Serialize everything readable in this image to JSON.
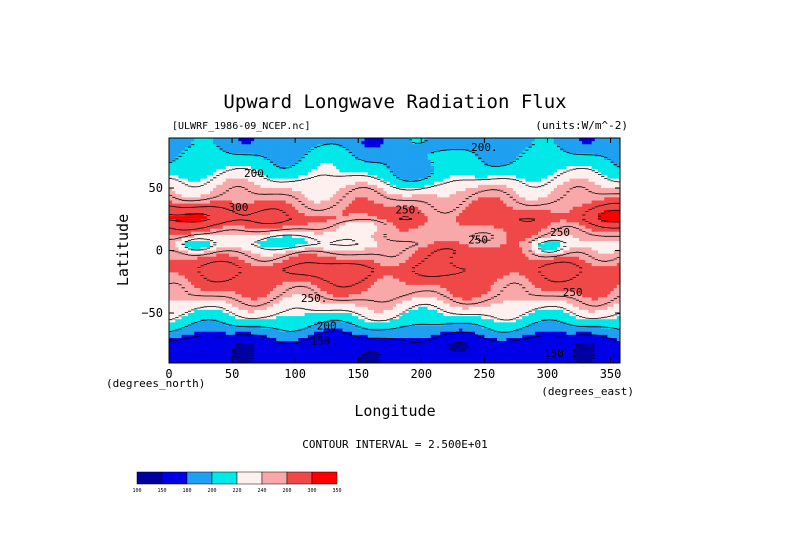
{
  "chart_data": {
    "type": "heatmap",
    "title": "Upward Longwave Radiation Flux",
    "source_label": "[ULWRF_1986-09_NCEP.nc]",
    "units_label": "(units:W/m^-2)",
    "xlabel": "Longitude",
    "ylabel": "Latitude",
    "x_unit": "(degrees_east)",
    "y_unit": "(degrees_north)",
    "xlim": [
      0,
      357.5
    ],
    "ylim": [
      -90,
      90
    ],
    "x_ticks": [
      0,
      50,
      100,
      150,
      200,
      250,
      300,
      350
    ],
    "y_ticks": [
      50,
      0,
      -50
    ],
    "contour_interval_text": "CONTOUR INTERVAL = 2.500E+01",
    "contour_labels": [
      {
        "text": "200.",
        "x": 250,
        "y": 83
      },
      {
        "text": "200.",
        "x": 70,
        "y": 62
      },
      {
        "text": "300",
        "x": 55,
        "y": 35
      },
      {
        "text": "250.",
        "x": 190,
        "y": 33
      },
      {
        "text": "250",
        "x": 245,
        "y": 9
      },
      {
        "text": "250",
        "x": 310,
        "y": 15
      },
      {
        "text": "250.",
        "x": 115,
        "y": -38
      },
      {
        "text": "250",
        "x": 320,
        "y": -33
      },
      {
        "text": "200",
        "x": 125,
        "y": -60
      },
      {
        "text": "150",
        "x": 120,
        "y": -72
      },
      {
        "text": "150",
        "x": 305,
        "y": -82
      }
    ],
    "color_levels": [
      100,
      150,
      180,
      200,
      220,
      240,
      260,
      300,
      350
    ],
    "colorbar_labels": [
      "100",
      "150",
      "180",
      "200",
      "220",
      "240",
      "260",
      "300",
      "350"
    ],
    "colors": [
      "#0000a0",
      "#0000e8",
      "#1fa0f0",
      "#00e8e8",
      "#fff0f0",
      "#f8a8a8",
      "#f04848",
      "#ff0000"
    ],
    "lat_profile_summary": [
      {
        "lat": 85,
        "value": 190
      },
      {
        "lat": 65,
        "value": 215
      },
      {
        "lat": 50,
        "value": 240
      },
      {
        "lat": 25,
        "value": 270
      },
      {
        "lat": 5,
        "value": 240
      },
      {
        "lat": -15,
        "value": 275
      },
      {
        "lat": -35,
        "value": 255
      },
      {
        "lat": -55,
        "value": 215
      },
      {
        "lat": -75,
        "value": 160
      }
    ]
  }
}
